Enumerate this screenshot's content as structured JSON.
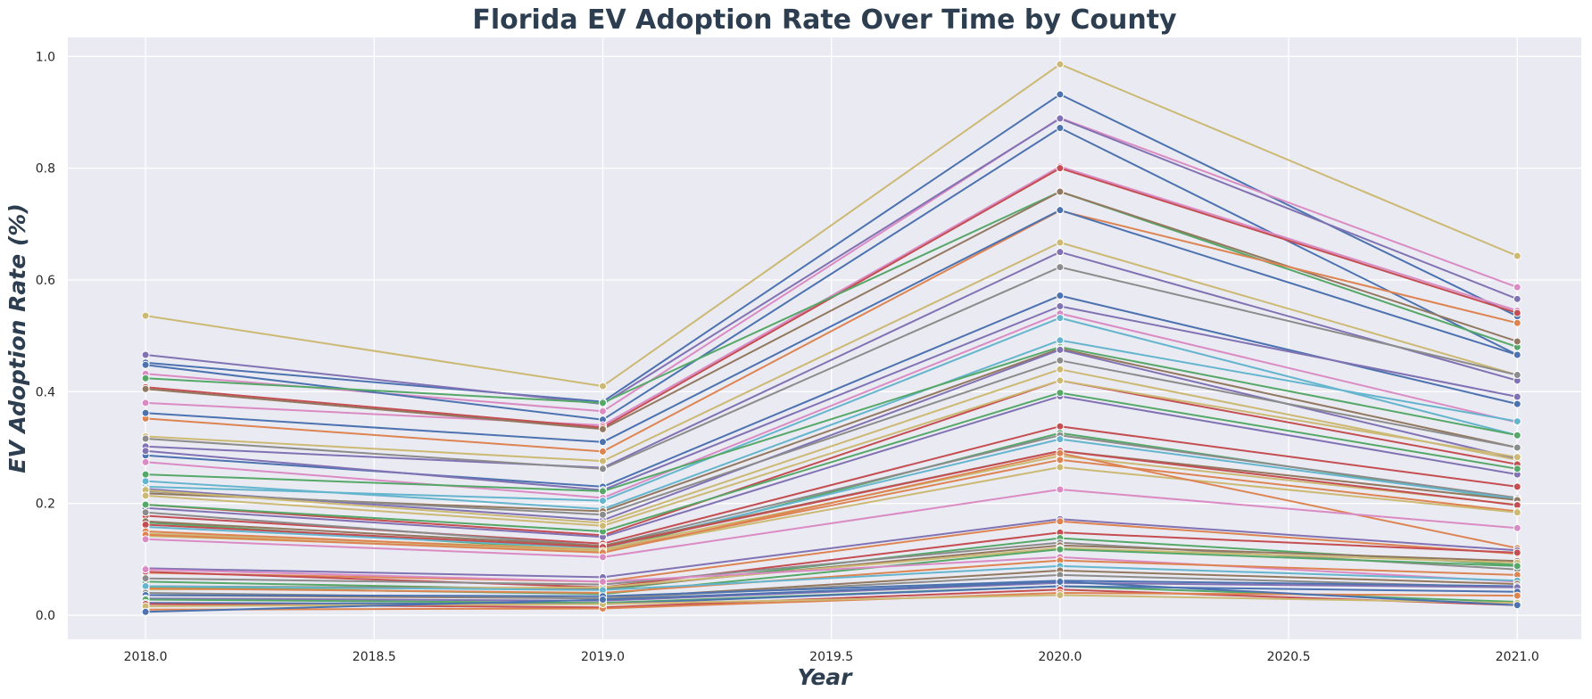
{
  "chart_data": {
    "type": "line",
    "title": "Florida EV Adoption Rate Over Time by County",
    "xlabel": "Year",
    "ylabel": "EV Adoption Rate (%)",
    "xlim": [
      2017.83,
      2021.14
    ],
    "ylim": [
      -0.043,
      1.034
    ],
    "x_ticks": [
      "2018.0",
      "2018.5",
      "2019.0",
      "2019.5",
      "2020.0",
      "2020.5",
      "2021.0"
    ],
    "y_ticks": [
      "0.0",
      "0.2",
      "0.4",
      "0.6",
      "0.8",
      "1.0"
    ],
    "grid": true,
    "legend": "none",
    "background": "#eaeaf2",
    "x": [
      2018,
      2019,
      2020,
      2021
    ],
    "series": [
      {
        "color": "#ccb974",
        "values": [
          0.536,
          0.41,
          0.986,
          0.643
        ]
      },
      {
        "color": "#4c72b0",
        "values": [
          0.452,
          0.382,
          0.932,
          0.535
        ]
      },
      {
        "color": "#da8bc3",
        "values": [
          0.432,
          0.365,
          0.89,
          0.587
        ]
      },
      {
        "color": "#8172b3",
        "values": [
          0.466,
          0.378,
          0.889,
          0.566
        ]
      },
      {
        "color": "#4c72b0",
        "values": [
          0.448,
          0.35,
          0.872,
          0.466
        ]
      },
      {
        "color": "#da8bc3",
        "values": [
          0.38,
          0.34,
          0.803,
          0.545
        ]
      },
      {
        "color": "#c44e52",
        "values": [
          0.408,
          0.336,
          0.8,
          0.541
        ]
      },
      {
        "color": "#55a868",
        "values": [
          0.424,
          0.38,
          0.758,
          0.48
        ]
      },
      {
        "color": "#937860",
        "values": [
          0.405,
          0.333,
          0.758,
          0.49
        ]
      },
      {
        "color": "#dd8452",
        "values": [
          0.352,
          0.293,
          0.724,
          0.523
        ]
      },
      {
        "color": "#4c72b0",
        "values": [
          0.362,
          0.31,
          0.725,
          0.466
        ]
      },
      {
        "color": "#ccb974",
        "values": [
          0.32,
          0.276,
          0.667,
          0.43
        ]
      },
      {
        "color": "#8172b3",
        "values": [
          0.302,
          0.264,
          0.65,
          0.42
        ]
      },
      {
        "color": "#8c8c8c",
        "values": [
          0.316,
          0.262,
          0.623,
          0.43
        ]
      },
      {
        "color": "#4c72b0",
        "values": [
          0.286,
          0.23,
          0.572,
          0.378
        ]
      },
      {
        "color": "#8172b3",
        "values": [
          0.294,
          0.224,
          0.553,
          0.391
        ]
      },
      {
        "color": "#da8bc3",
        "values": [
          0.274,
          0.21,
          0.54,
          0.345
        ]
      },
      {
        "color": "#64b5cd",
        "values": [
          0.23,
          0.205,
          0.532,
          0.322
        ]
      },
      {
        "color": "#64b5cd",
        "values": [
          0.24,
          0.19,
          0.492,
          0.347
        ]
      },
      {
        "color": "#55a868",
        "values": [
          0.252,
          0.222,
          0.48,
          0.322
        ]
      },
      {
        "color": "#937860",
        "values": [
          0.218,
          0.186,
          0.477,
          0.3
        ]
      },
      {
        "color": "#8172b3",
        "values": [
          0.226,
          0.17,
          0.475,
          0.28
        ]
      },
      {
        "color": "#8c8c8c",
        "values": [
          0.222,
          0.18,
          0.456,
          0.3
        ]
      },
      {
        "color": "#ccb974",
        "values": [
          0.224,
          0.165,
          0.44,
          0.278
        ]
      },
      {
        "color": "#c44e52",
        "values": [
          0.198,
          0.143,
          0.42,
          0.27
        ]
      },
      {
        "color": "#8172b3",
        "values": [
          0.192,
          0.14,
          0.392,
          0.252
        ]
      },
      {
        "color": "#55a868",
        "values": [
          0.198,
          0.15,
          0.398,
          0.262
        ]
      },
      {
        "color": "#ccb974",
        "values": [
          0.214,
          0.16,
          0.42,
          0.283
        ]
      },
      {
        "color": "#c44e52",
        "values": [
          0.178,
          0.128,
          0.338,
          0.23
        ]
      },
      {
        "color": "#55a868",
        "values": [
          0.166,
          0.115,
          0.326,
          0.206
        ]
      },
      {
        "color": "#8c8c8c",
        "values": [
          0.184,
          0.124,
          0.322,
          0.21
        ]
      },
      {
        "color": "#64b5cd",
        "values": [
          0.158,
          0.12,
          0.315,
          0.208
        ]
      },
      {
        "color": "#937860",
        "values": [
          0.168,
          0.124,
          0.294,
          0.206
        ]
      },
      {
        "color": "#ccb974",
        "values": [
          0.146,
          0.118,
          0.285,
          0.198
        ]
      },
      {
        "color": "#c44e52",
        "values": [
          0.162,
          0.122,
          0.294,
          0.197
        ]
      },
      {
        "color": "#dd8452",
        "values": [
          0.15,
          0.115,
          0.278,
          0.186
        ]
      },
      {
        "color": "#ccb974",
        "values": [
          0.142,
          0.115,
          0.265,
          0.184
        ]
      },
      {
        "color": "#dd8452",
        "values": [
          0.144,
          0.112,
          0.29,
          0.12
        ]
      },
      {
        "color": "#da8bc3",
        "values": [
          0.136,
          0.104,
          0.225,
          0.156
        ]
      },
      {
        "color": "#8172b3",
        "values": [
          0.084,
          0.068,
          0.172,
          0.116
        ]
      },
      {
        "color": "#dd8452",
        "values": [
          0.076,
          0.06,
          0.168,
          0.11
        ]
      },
      {
        "color": "#c44e52",
        "values": [
          0.078,
          0.05,
          0.148,
          0.112
        ]
      },
      {
        "color": "#55a868",
        "values": [
          0.06,
          0.045,
          0.138,
          0.09
        ]
      },
      {
        "color": "#8c8c8c",
        "values": [
          0.066,
          0.055,
          0.13,
          0.082
        ]
      },
      {
        "color": "#937860",
        "values": [
          0.052,
          0.048,
          0.125,
          0.097
        ]
      },
      {
        "color": "#ccb974",
        "values": [
          0.046,
          0.05,
          0.12,
          0.094
        ]
      },
      {
        "color": "#55a868",
        "values": [
          0.05,
          0.038,
          0.118,
          0.088
        ]
      },
      {
        "color": "#da8bc3",
        "values": [
          0.082,
          0.06,
          0.104,
          0.06
        ]
      },
      {
        "color": "#dd8452",
        "values": [
          0.048,
          0.04,
          0.098,
          0.072
        ]
      },
      {
        "color": "#64b5cd",
        "values": [
          0.052,
          0.045,
          0.088,
          0.062
        ]
      },
      {
        "color": "#937860",
        "values": [
          0.036,
          0.03,
          0.08,
          0.056
        ]
      },
      {
        "color": "#8c8c8c",
        "values": [
          0.04,
          0.03,
          0.072,
          0.05
        ]
      },
      {
        "color": "#4c72b0",
        "values": [
          0.036,
          0.034,
          0.062,
          0.052
        ]
      },
      {
        "color": "#8172b3",
        "values": [
          0.03,
          0.026,
          0.058,
          0.05
        ]
      },
      {
        "color": "#55a868",
        "values": [
          0.028,
          0.022,
          0.052,
          0.024
        ]
      },
      {
        "color": "#4c72b0",
        "values": [
          0.022,
          0.02,
          0.052,
          0.042
        ]
      },
      {
        "color": "#c44e52",
        "values": [
          0.02,
          0.014,
          0.046,
          0.018
        ]
      },
      {
        "color": "#dd8452",
        "values": [
          0.01,
          0.012,
          0.04,
          0.035
        ]
      },
      {
        "color": "#ccb974",
        "values": [
          0.016,
          0.02,
          0.036,
          0.022
        ]
      },
      {
        "color": "#4c72b0",
        "values": [
          0.006,
          0.028,
          0.06,
          0.018
        ]
      }
    ]
  }
}
